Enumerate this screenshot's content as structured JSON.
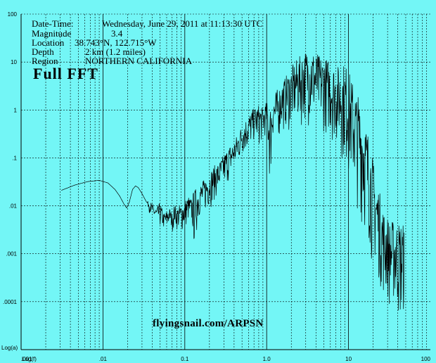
{
  "info": {
    "datetime_label": "Date-Time:",
    "datetime_value": "Wednesday, June 29, 2011 at 11:13:30 UTC",
    "magnitude_label": "Magnitude",
    "magnitude_value": "3.4",
    "location_label": "Location",
    "location_value": "38.743°N, 122.715°W",
    "depth_label": "Depth",
    "depth_value": "2 km (1.2 miles)",
    "region_label": "Region",
    "region_value": "NORTHERN CALIFORNIA"
  },
  "chart_title": "Full FFT",
  "credit": "flyingsnail.com/ARPSN",
  "colors": {
    "background": "#73F6F6",
    "trace": "#000000",
    "grid": "#000000"
  },
  "chart_data": {
    "type": "line",
    "title": "Full FFT",
    "xlabel": "Log(f)",
    "ylabel": "Log(a)",
    "x_scale": "log",
    "y_scale": "log",
    "xlim": [
      0.001,
      100
    ],
    "ylim": [
      1e-05,
      100
    ],
    "x_tick_labels": [
      ".001",
      ".01",
      "0.1",
      "1.0",
      "10",
      "100"
    ],
    "y_tick_labels": [
      "100",
      "10",
      "1",
      ".1",
      ".01",
      ".001",
      ".0001"
    ],
    "grid": true,
    "series": [
      {
        "envelope": true,
        "x": [
          0.0031,
          0.0045,
          0.0065,
          0.009,
          0.0115,
          0.014,
          0.016,
          0.018,
          0.0195,
          0.021,
          0.023,
          0.025,
          0.027,
          0.03,
          0.034,
          0.037,
          0.04,
          0.045,
          0.05,
          0.055,
          0.06,
          0.065,
          0.07,
          0.075,
          0.08,
          0.09,
          0.1,
          0.11,
          0.12,
          0.13,
          0.15,
          0.17,
          0.2,
          0.23,
          0.26,
          0.3,
          0.35,
          0.4,
          0.45,
          0.5,
          0.6,
          0.7,
          0.8,
          0.9,
          1.0,
          1.1,
          1.2,
          1.3,
          1.5,
          1.7,
          2.0,
          2.3,
          2.6,
          3.0,
          3.5,
          4.0,
          4.5,
          5.0,
          6.0,
          7.0,
          8.0,
          9.0,
          10,
          12,
          14,
          16,
          18,
          20,
          22,
          24,
          26,
          28,
          30,
          32,
          35,
          40,
          45,
          48
        ],
        "y_max": [
          0.021,
          0.027,
          0.032,
          0.034,
          0.03,
          0.022,
          0.016,
          0.011,
          0.009,
          0.012,
          0.022,
          0.026,
          0.024,
          0.018,
          0.012,
          0.013,
          0.011,
          0.009,
          0.012,
          0.007,
          0.008,
          0.009,
          0.007,
          0.011,
          0.009,
          0.011,
          0.013,
          0.016,
          0.014,
          0.022,
          0.028,
          0.035,
          0.05,
          0.07,
          0.08,
          0.12,
          0.18,
          0.22,
          0.35,
          0.5,
          0.8,
          1.1,
          1.3,
          1.1,
          1.5,
          1.3,
          1.8,
          2.5,
          3.5,
          5,
          8,
          11,
          14,
          18,
          20,
          16,
          14,
          13,
          11,
          8,
          9,
          10,
          7,
          3,
          1.6,
          0.6,
          0.3,
          0.09,
          0.04,
          0.02,
          0.011,
          0.007,
          0.006,
          0.005,
          0.005,
          0.005,
          0.005,
          0.004
        ],
        "y_min": [
          0.021,
          0.027,
          0.032,
          0.034,
          0.03,
          0.022,
          0.016,
          0.011,
          0.009,
          0.012,
          0.022,
          0.026,
          0.024,
          0.018,
          0.012,
          0.007,
          0.005,
          0.004,
          0.003,
          0.003,
          0.0025,
          0.004,
          0.0028,
          0.0035,
          0.003,
          0.0025,
          0.0028,
          0.004,
          0.004,
          0.0011,
          0.005,
          0.006,
          0.008,
          0.012,
          0.015,
          0.02,
          0.03,
          0.05,
          0.06,
          0.1,
          0.12,
          0.2,
          0.15,
          0.2,
          0.3,
          0.015,
          0.25,
          0.15,
          0.3,
          0.35,
          0.3,
          0.4,
          0.35,
          0.5,
          0.4,
          0.35,
          0.3,
          0.3,
          0.2,
          0.15,
          0.1,
          0.05,
          0.03,
          0.01,
          0.005,
          0.002,
          0.001,
          0.0004,
          0.0003,
          0.0002,
          0.0001,
          8e-05,
          0.0001,
          4e-05,
          7e-05,
          3e-05,
          2e-05,
          5e-05
        ]
      }
    ]
  }
}
